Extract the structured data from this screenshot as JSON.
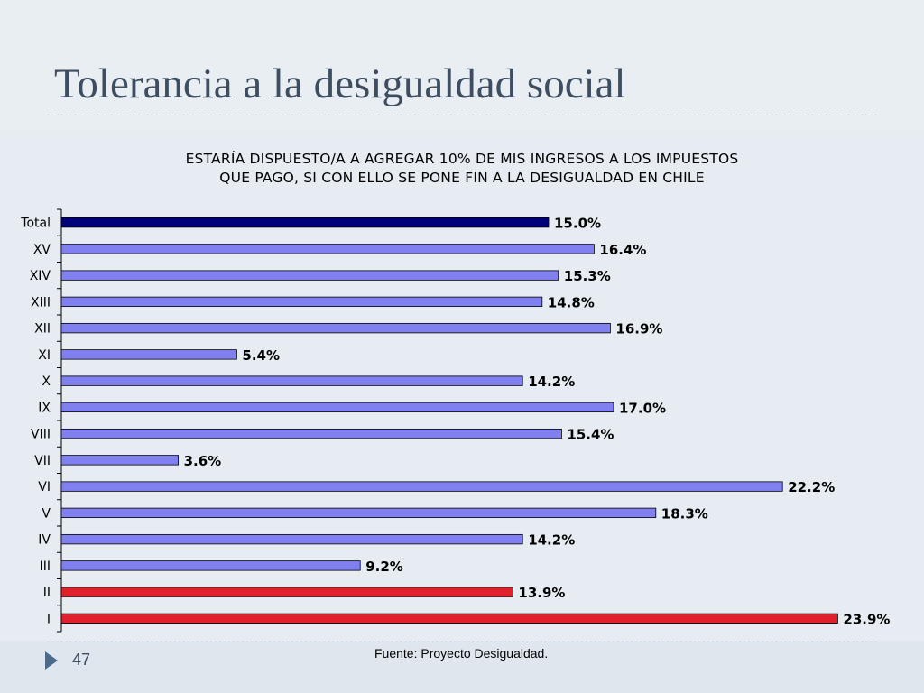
{
  "slide": {
    "title": "Tolerancia a la desigualdad social",
    "page_number": "47",
    "source": "Fuente: Proyecto Desigualdad."
  },
  "chart_data": {
    "type": "bar",
    "orientation": "horizontal",
    "title_lines": [
      "ESTARÍA DISPUESTO/A A AGREGAR 10% DE MIS INGRESOS A LOS IMPUESTOS",
      "QUE PAGO, SI CON ELLO SE PONE FIN A LA DESIGUALDAD EN CHILE"
    ],
    "categories": [
      "Total",
      "XV",
      "XIV",
      "XIII",
      "XII",
      "XI",
      "X",
      "IX",
      "VIII",
      "VII",
      "VI",
      "V",
      "IV",
      "III",
      "II",
      "I"
    ],
    "values": [
      15.0,
      16.4,
      15.3,
      14.8,
      16.9,
      5.4,
      14.2,
      17.0,
      15.4,
      3.6,
      22.2,
      18.3,
      14.2,
      9.2,
      13.9,
      23.9
    ],
    "labels": [
      "15.0%",
      "16.4%",
      "15.3%",
      "14.8%",
      "16.9%",
      "5.4%",
      "14.2%",
      "17.0%",
      "15.4%",
      "3.6%",
      "22.2%",
      "18.3%",
      "14.2%",
      "9.2%",
      "13.9%",
      "23.9%"
    ],
    "bar_groups": [
      "total",
      "region",
      "region",
      "region",
      "region",
      "region",
      "region",
      "region",
      "region",
      "region",
      "region",
      "region",
      "region",
      "region",
      "highlight",
      "highlight"
    ],
    "colors": {
      "total": "#00007a",
      "region": "#8080f0",
      "highlight": "#e0202c"
    },
    "xlim": [
      0,
      25
    ],
    "grid": false,
    "legend": "none"
  }
}
